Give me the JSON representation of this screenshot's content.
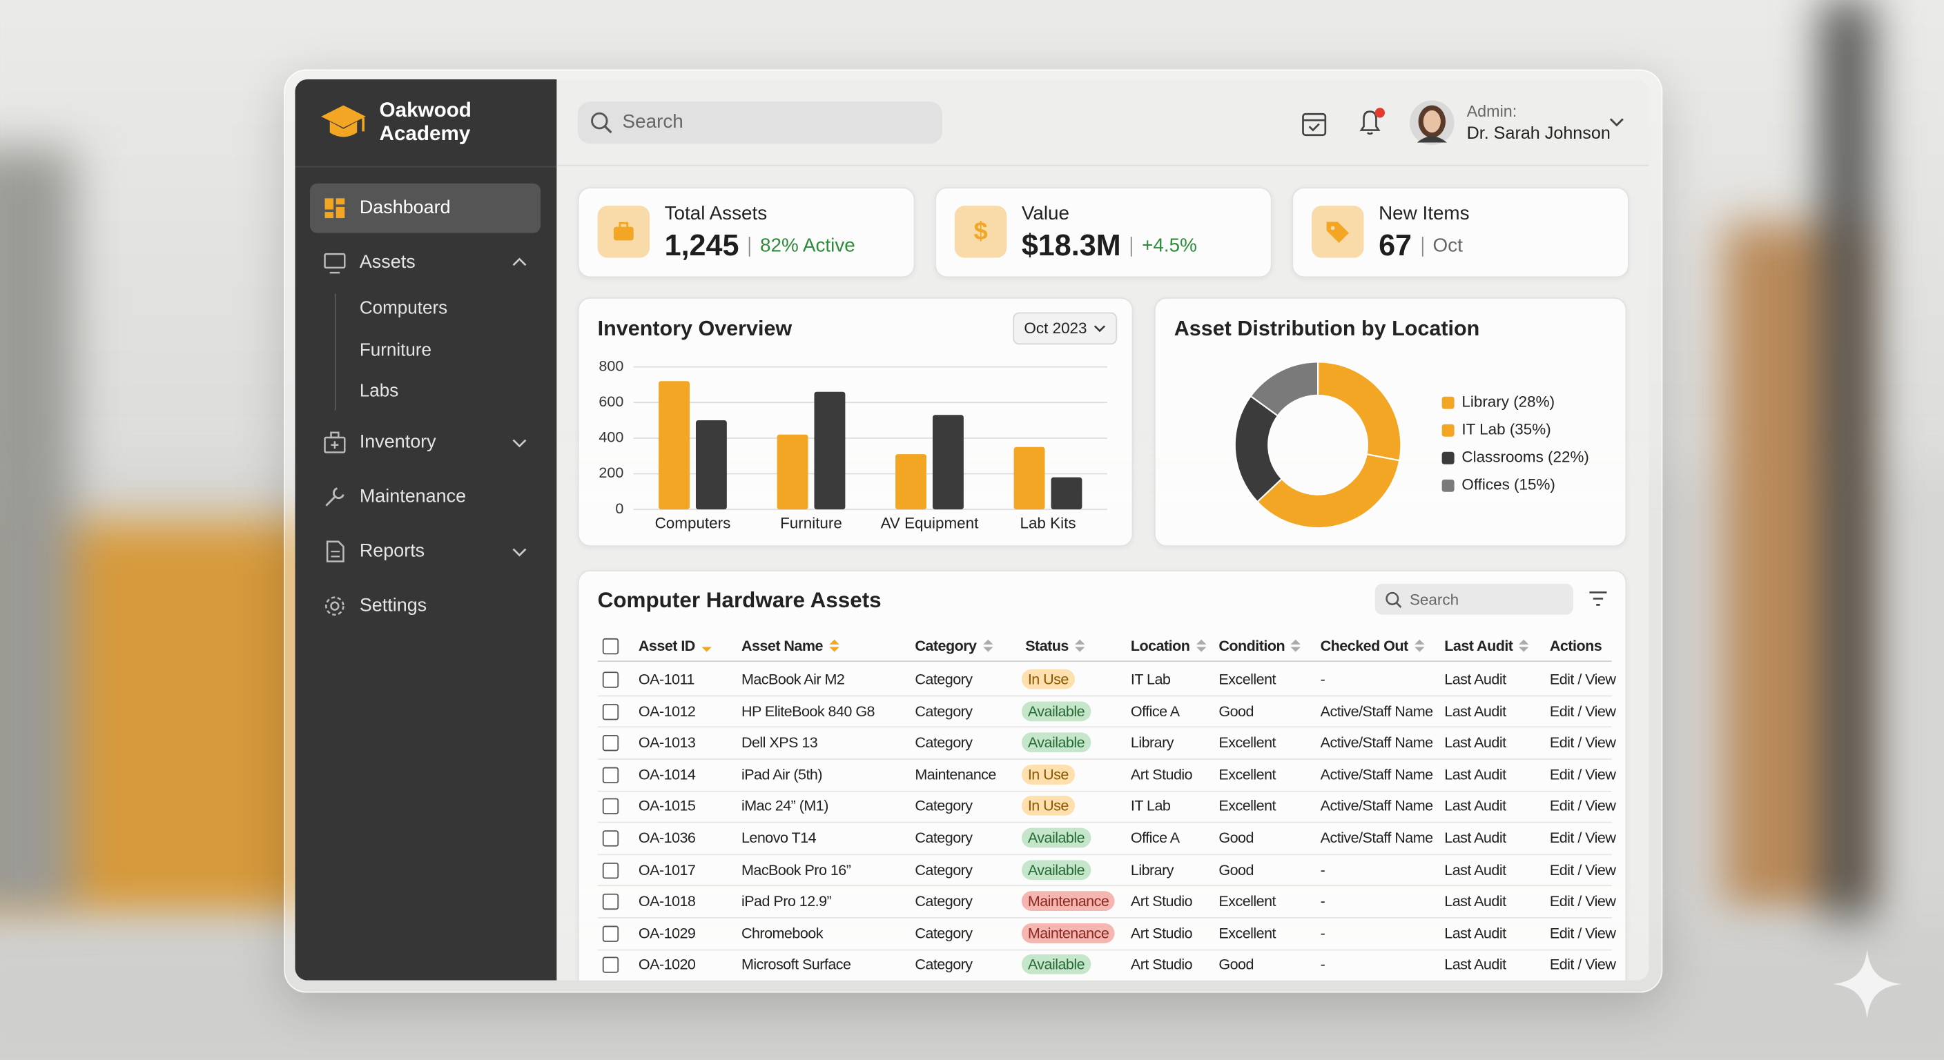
{
  "sidebar": {
    "brand": "Oakwood Academy",
    "nav": [
      {
        "label": "Dashboard",
        "active": true
      },
      {
        "label": "Assets",
        "expanded": true,
        "children": [
          "Computers",
          "Furniture",
          "Labs"
        ]
      },
      {
        "label": "Inventory",
        "expanded": false
      },
      {
        "label": "Maintenance"
      },
      {
        "label": "Reports",
        "expanded": false
      },
      {
        "label": "Settings"
      }
    ]
  },
  "topbar": {
    "search_placeholder": "Search",
    "user_role": "Admin:",
    "user_name": "Dr. Sarah Johnson"
  },
  "kpis": [
    {
      "label": "Total Assets",
      "value": "1,245",
      "sub": "82% Active",
      "sub_color": "#2e8b3a"
    },
    {
      "label": "Value",
      "value": "$18.3M",
      "sub": "+4.5%",
      "sub_color": "#2e8b3a"
    },
    {
      "label": "New Items",
      "value": "67",
      "sub": "Oct",
      "sub_color": "#666666"
    }
  ],
  "inventory_period": "Oct 2023",
  "chart_data": [
    {
      "type": "bar",
      "title": "Inventory Overview",
      "categories": [
        "Computers",
        "Furniture",
        "AV Equipment",
        "Lab Kits"
      ],
      "series": [
        {
          "color": "#f2a623",
          "values": [
            720,
            420,
            310,
            350
          ]
        },
        {
          "color": "#3b3b3b",
          "values": [
            500,
            660,
            530,
            180
          ]
        }
      ],
      "ylim": [
        0,
        800
      ],
      "yticks": [
        0,
        200,
        400,
        600,
        800
      ],
      "grid": true
    },
    {
      "type": "pie",
      "title": "Asset Distribution by Location",
      "categories": [
        "Library (28%)",
        "IT Lab (35%)",
        "Classrooms (22%)",
        "Offices (15%)"
      ],
      "values": [
        28,
        35,
        22,
        15
      ],
      "colors": [
        "#f2a623",
        "#f2a623",
        "#3b3b3b",
        "#7a7a7a"
      ],
      "donut": true
    }
  ],
  "table": {
    "title": "Computer Hardware Assets",
    "search_placeholder": "Search",
    "columns": [
      "Asset ID",
      "Asset Name",
      "Category",
      "Status",
      "Location",
      "Condition",
      "Checked Out",
      "Last Audit",
      "Actions"
    ],
    "status_styles": {
      "In Use": {
        "bg": "#fde0ad",
        "fg": "#8a5600"
      },
      "Available": {
        "bg": "#c6e6cc",
        "fg": "#256b33"
      },
      "Maintenance": {
        "bg": "#f5b5b0",
        "fg": "#8a2a22"
      }
    },
    "rows": [
      [
        "OA-1011",
        "MacBook Air M2",
        "Category",
        "In Use",
        "IT Lab",
        "Excellent",
        "-",
        "Last Audit",
        "Edit / View"
      ],
      [
        "OA-1012",
        "HP EliteBook 840 G8",
        "Category",
        "Available",
        "Office A",
        "Good",
        "Active/Staff Name",
        "Last Audit",
        "Edit / View"
      ],
      [
        "OA-1013",
        "Dell XPS 13",
        "Category",
        "Available",
        "Library",
        "Excellent",
        "Active/Staff Name",
        "Last Audit",
        "Edit / View"
      ],
      [
        "OA-1014",
        "iPad Air (5th)",
        "Maintenance",
        "In Use",
        "Art Studio",
        "Excellent",
        "Active/Staff Name",
        "Last Audit",
        "Edit / View"
      ],
      [
        "OA-1015",
        "iMac 24” (M1)",
        "Category",
        "In Use",
        "IT Lab",
        "Excellent",
        "Active/Staff Name",
        "Last Audit",
        "Edit / View"
      ],
      [
        "OA-1036",
        "Lenovo T14",
        "Category",
        "Available",
        "Office A",
        "Good",
        "Active/Staff Name",
        "Last Audit",
        "Edit / View"
      ],
      [
        "OA-1017",
        "MacBook Pro 16”",
        "Category",
        "Available",
        "Library",
        "Good",
        "-",
        "Last Audit",
        "Edit / View"
      ],
      [
        "OA-1018",
        "iPad Pro 12.9”",
        "Category",
        "Maintenance",
        "Art Studio",
        "Excellent",
        "-",
        "Last Audit",
        "Edit / View"
      ],
      [
        "OA-1029",
        "Chromebook",
        "Category",
        "Maintenance",
        "Art Studio",
        "Excellent",
        "-",
        "Last Audit",
        "Edit / View"
      ],
      [
        "OA-1020",
        "Microsoft Surface",
        "Category",
        "Available",
        "Art Studio",
        "Good",
        "-",
        "Last Audit",
        "Edit / View"
      ]
    ]
  }
}
